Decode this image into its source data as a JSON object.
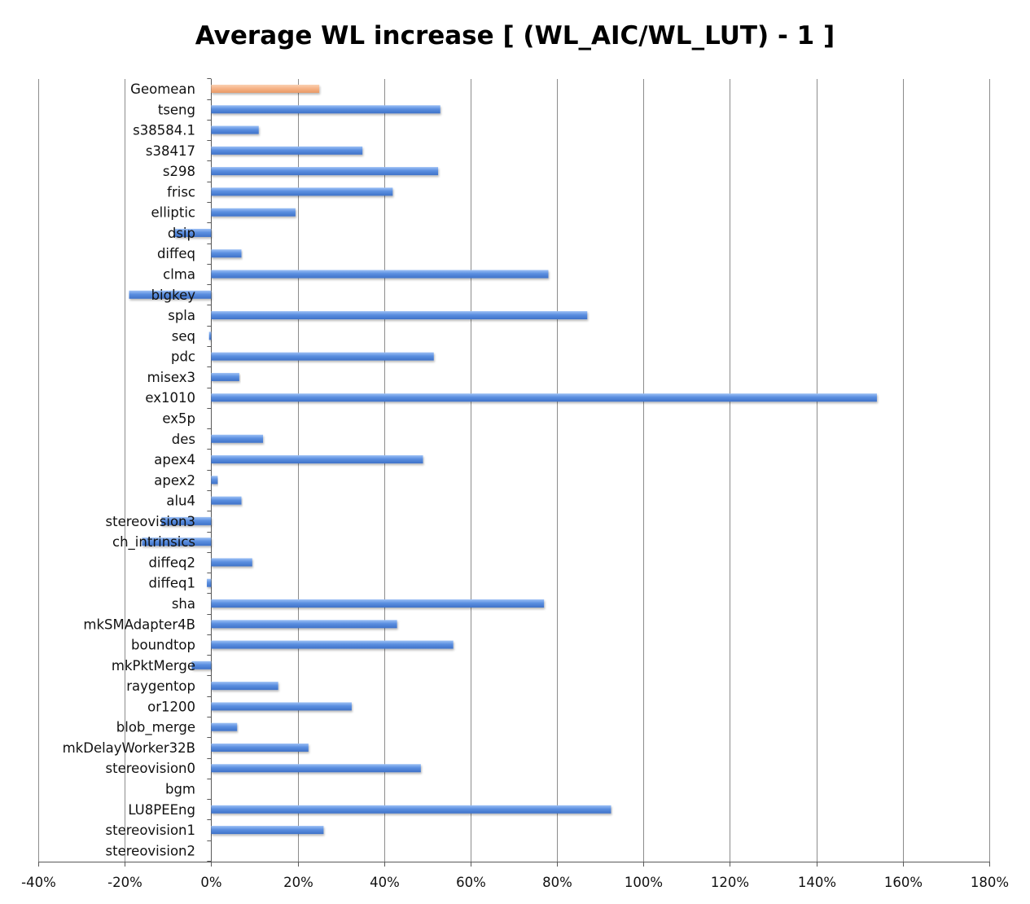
{
  "chart_data": {
    "type": "bar",
    "orientation": "horizontal",
    "title": "Average WL increase [ (WL_AIC/WL_LUT) - 1 ]",
    "xlabel": "",
    "ylabel": "",
    "xlim": [
      -40,
      180
    ],
    "x_ticks": [
      -40,
      -20,
      0,
      20,
      40,
      60,
      80,
      100,
      120,
      140,
      160,
      180
    ],
    "x_tick_labels": [
      "-40%",
      "-20%",
      "0%",
      "20%",
      "40%",
      "60%",
      "80%",
      "100%",
      "120%",
      "140%",
      "160%",
      "180%"
    ],
    "grid": "vertical",
    "legend": "none",
    "colors": {
      "bar": "#5b8fe0",
      "geomean": "#f5b183",
      "grid": "#8c8c8c",
      "axis": "#595959"
    },
    "categories": [
      "Geomean",
      "tseng",
      "s38584.1",
      "s38417",
      "s298",
      "frisc",
      "elliptic",
      "dsip",
      "diffeq",
      "clma",
      "bigkey",
      "spla",
      "seq",
      "pdc",
      "misex3",
      "ex1010",
      "ex5p",
      "des",
      "apex4",
      "apex2",
      "alu4",
      "stereovision3",
      "ch_intrinsics",
      "diffeq2",
      "diffeq1",
      "sha",
      "mkSMAdapter4B",
      "boundtop",
      "mkPktMerge",
      "raygentop",
      "or1200",
      "blob_merge",
      "mkDelayWorker32B",
      "stereovision0",
      "bgm",
      "LU8PEEng",
      "stereovision1",
      "stereovision2"
    ],
    "values": [
      25,
      53,
      11,
      35,
      52.5,
      42,
      19.5,
      -8.5,
      7,
      78,
      -19,
      87,
      -0.5,
      51.5,
      6.5,
      154,
      0,
      12,
      49,
      1.5,
      7,
      -11.5,
      -16,
      9.5,
      -1,
      77,
      43,
      56,
      -4.5,
      15.5,
      32.5,
      6,
      22.5,
      48.5,
      0,
      92.5,
      26,
      0
    ],
    "highlight": [
      "Geomean"
    ]
  }
}
